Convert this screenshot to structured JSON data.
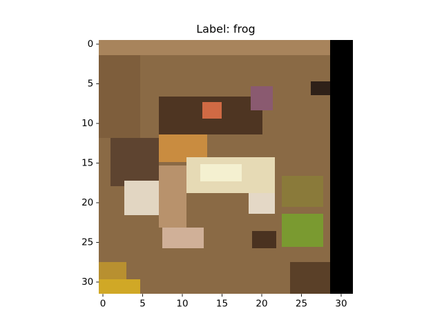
{
  "chart_data": {
    "type": "image",
    "title": "Label: frog",
    "xlim": [
      -0.5,
      31.5
    ],
    "xticks": [
      0,
      5,
      10,
      15,
      20,
      25,
      30
    ],
    "ylim": [
      31.5,
      -0.5
    ],
    "yticks": [
      0,
      5,
      10,
      15,
      20,
      25,
      30
    ]
  }
}
